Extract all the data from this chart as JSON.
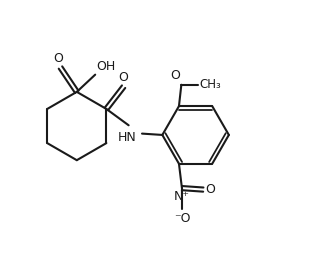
{
  "bg_color": "#ffffff",
  "line_color": "#1a1a1a",
  "line_width": 1.5,
  "font_size": 9,
  "fig_width": 3.11,
  "fig_height": 2.58,
  "dpi": 100,
  "xlim": [
    0,
    10
  ],
  "ylim": [
    0,
    8.5
  ]
}
